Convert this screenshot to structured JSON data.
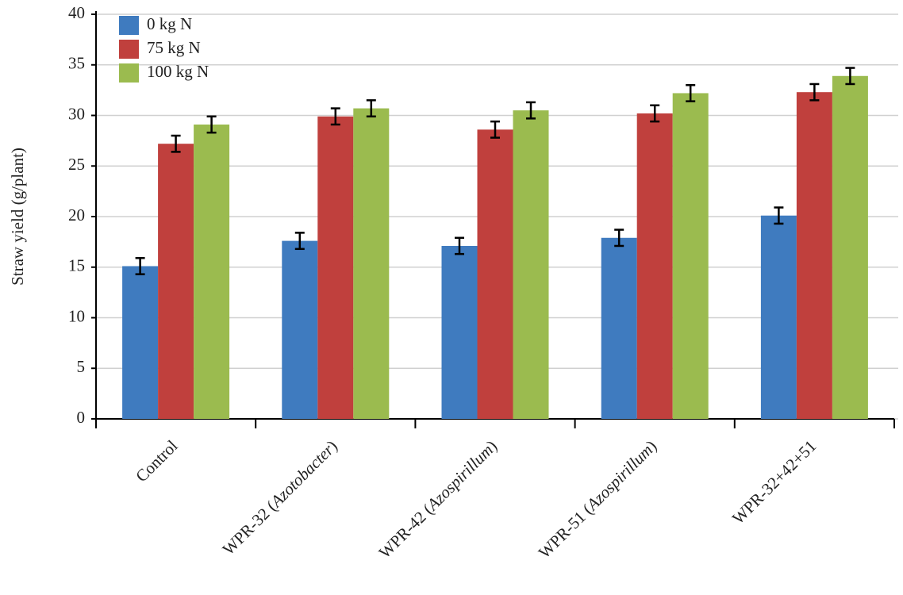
{
  "chart_data": {
    "type": "bar",
    "y_label": "Straw yield (g/plant)",
    "categories": [
      "Control",
      "WPR-32 (Azotobacter)",
      "WPR-42 (Azospirillum)",
      "WPR-51 (Azospirillum)",
      "WPR-32+42+51"
    ],
    "series": [
      {
        "name": "0 kg N",
        "color": "#3f7bbf",
        "values": [
          15.1,
          17.6,
          17.1,
          17.9,
          20.1
        ],
        "errors": [
          0.8,
          0.8,
          0.8,
          0.8,
          0.8
        ]
      },
      {
        "name": "75 kg N",
        "color": "#c0403d",
        "values": [
          27.2,
          29.9,
          28.6,
          30.2,
          32.3
        ],
        "errors": [
          0.8,
          0.8,
          0.8,
          0.8,
          0.8
        ]
      },
      {
        "name": "100 kg N",
        "color": "#9bbb4f",
        "values": [
          29.1,
          30.7,
          30.5,
          32.2,
          33.9
        ],
        "errors": [
          0.8,
          0.8,
          0.8,
          0.8,
          0.8
        ]
      }
    ],
    "ylim": [
      0,
      40
    ],
    "yticks": [
      0,
      5,
      10,
      15,
      20,
      25,
      30,
      35,
      40
    ],
    "grid": true,
    "legend": "top-left"
  }
}
